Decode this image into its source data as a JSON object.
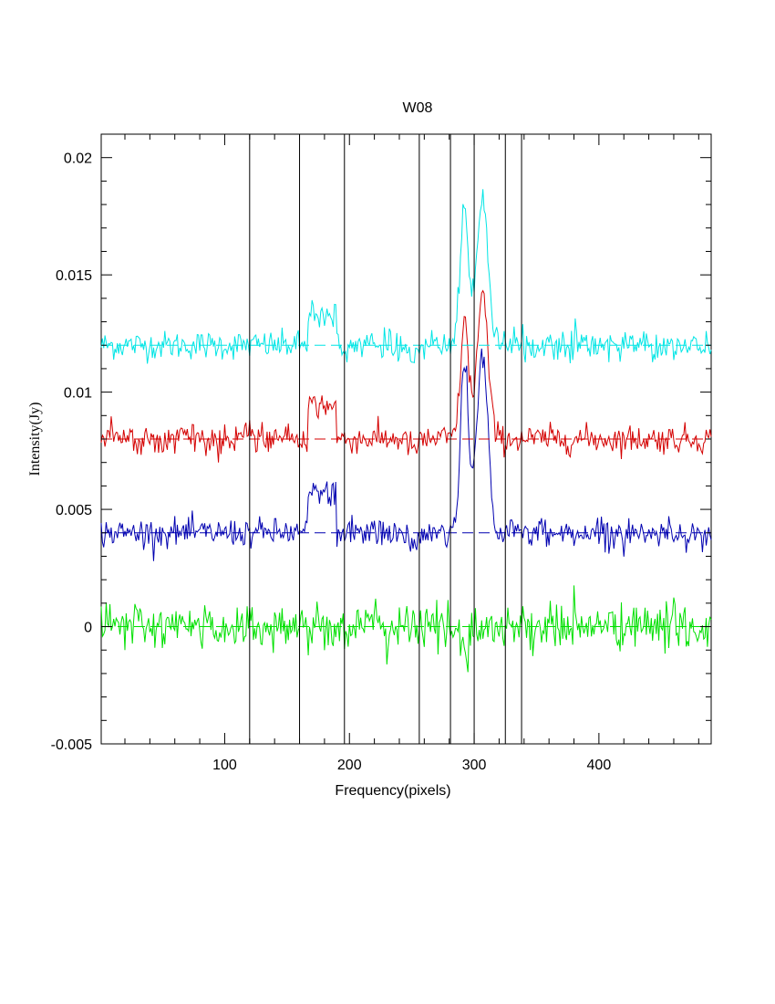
{
  "chart_data": {
    "type": "line",
    "title": "W08",
    "xlabel": "Frequency(pixels)",
    "ylabel": "Intensity(Jy)",
    "xlim": [
      1,
      490
    ],
    "ylim": [
      -0.005,
      0.021
    ],
    "x_ticks": [
      {
        "value": 100,
        "label": "100"
      },
      {
        "value": 200,
        "label": "200"
      },
      {
        "value": 300,
        "label": "300"
      },
      {
        "value": 400,
        "label": "400"
      }
    ],
    "y_ticks": [
      {
        "value": -0.005,
        "label": "-0.005"
      },
      {
        "value": 0,
        "label": "0"
      },
      {
        "value": 0.005,
        "label": "0.005"
      },
      {
        "value": 0.01,
        "label": "0.01"
      },
      {
        "value": 0.015,
        "label": "0.015"
      },
      {
        "value": 0.02,
        "label": "0.02"
      }
    ],
    "vertical_markers": [
      120,
      160,
      196,
      256,
      281,
      300,
      325,
      338
    ],
    "series": [
      {
        "color": "#00e5e5",
        "baseline": 0.012,
        "noise": 0.0003,
        "features": [
          {
            "x": 178,
            "height": 0.0013,
            "width": 8,
            "shape": "box"
          },
          {
            "x": 292,
            "height": 0.0052,
            "width": 3
          },
          {
            "x": 307,
            "height": 0.0055,
            "width": 4
          },
          {
            "x": 300,
            "height": 0.0012,
            "width": 8
          },
          {
            "x": 252,
            "height": -0.0004,
            "width": 4
          }
        ]
      },
      {
        "color": "#d40000",
        "baseline": 0.008,
        "noise": 0.0003,
        "features": [
          {
            "x": 178,
            "height": 0.0014,
            "width": 8,
            "shape": "box"
          },
          {
            "x": 292,
            "height": 0.0044,
            "width": 3
          },
          {
            "x": 307,
            "height": 0.0055,
            "width": 4
          },
          {
            "x": 300,
            "height": 0.001,
            "width": 8
          },
          {
            "x": 252,
            "height": -0.0004,
            "width": 4
          }
        ]
      },
      {
        "color": "#0000b0",
        "baseline": 0.004,
        "noise": 0.0003,
        "features": [
          {
            "x": 178,
            "height": 0.0017,
            "width": 8,
            "shape": "box"
          },
          {
            "x": 292,
            "height": 0.0065,
            "width": 3
          },
          {
            "x": 307,
            "height": 0.0067,
            "width": 4
          },
          {
            "x": 300,
            "height": 0.0014,
            "width": 8
          },
          {
            "x": 252,
            "height": -0.0005,
            "width": 4
          }
        ]
      },
      {
        "color": "#00e000",
        "baseline": 0,
        "noise": 0.0005,
        "features": [
          {
            "x": 292,
            "height": -0.0012,
            "width": 3
          }
        ]
      }
    ]
  }
}
